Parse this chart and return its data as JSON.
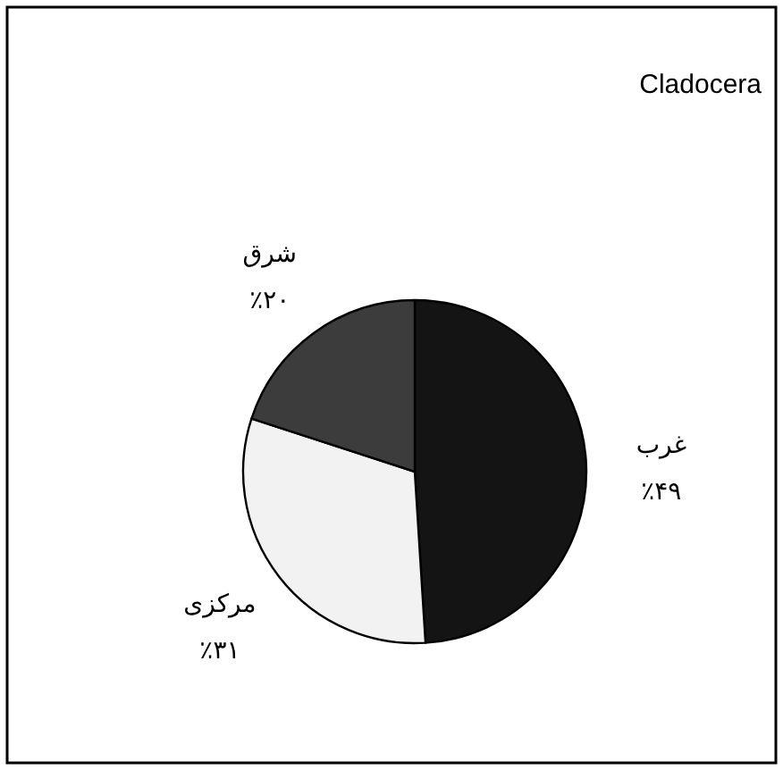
{
  "chart_data": {
    "type": "pie",
    "title": "Cladocera",
    "categories": [
      "غرب",
      "مرکزی",
      "شرق"
    ],
    "values": [
      49,
      31,
      20
    ],
    "value_labels": [
      "٪۴۹",
      "٪۳۱",
      "٪۲۰"
    ],
    "colors": [
      "#141414",
      "#f2f2f2",
      "#3c3c3c"
    ]
  }
}
